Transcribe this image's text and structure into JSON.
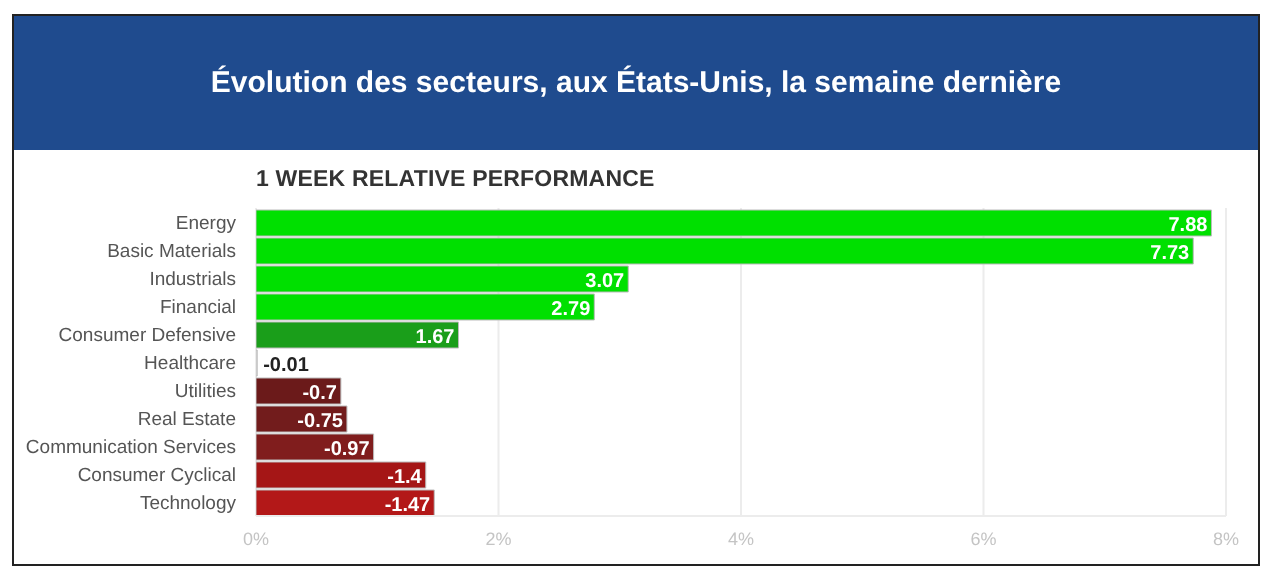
{
  "chart_data": {
    "type": "bar",
    "orientation": "horizontal",
    "title": "Évolution des secteurs, aux États-Unis, la semaine dernière",
    "subtitle": "1 WEEK RELATIVE PERFORMANCE",
    "categories": [
      "Energy",
      "Basic Materials",
      "Industrials",
      "Financial",
      "Consumer Defensive",
      "Healthcare",
      "Utilities",
      "Real Estate",
      "Communication Services",
      "Consumer Cyclical",
      "Technology"
    ],
    "values": [
      7.88,
      7.73,
      3.07,
      2.79,
      1.67,
      -0.01,
      -0.7,
      -0.75,
      -0.97,
      -1.4,
      -1.47
    ],
    "base": [
      0,
      0,
      0,
      0,
      0,
      0.01,
      0.7,
      0.75,
      0.97,
      1.4,
      1.47
    ],
    "colors": [
      "#00e000",
      "#00e000",
      "#00e000",
      "#00e000",
      "#1a9e1a",
      "#e6e6e6",
      "#6b1a1a",
      "#721c1c",
      "#801d1d",
      "#a51616",
      "#b31818"
    ],
    "xlim": [
      0,
      8
    ],
    "xticks": [
      {
        "value": 0,
        "label": "0%"
      },
      {
        "value": 2,
        "label": "2%"
      },
      {
        "value": 4,
        "label": "4%"
      },
      {
        "value": 6,
        "label": "6%"
      },
      {
        "value": 8,
        "label": "8%"
      }
    ],
    "grid": "x",
    "data_labels": true
  }
}
